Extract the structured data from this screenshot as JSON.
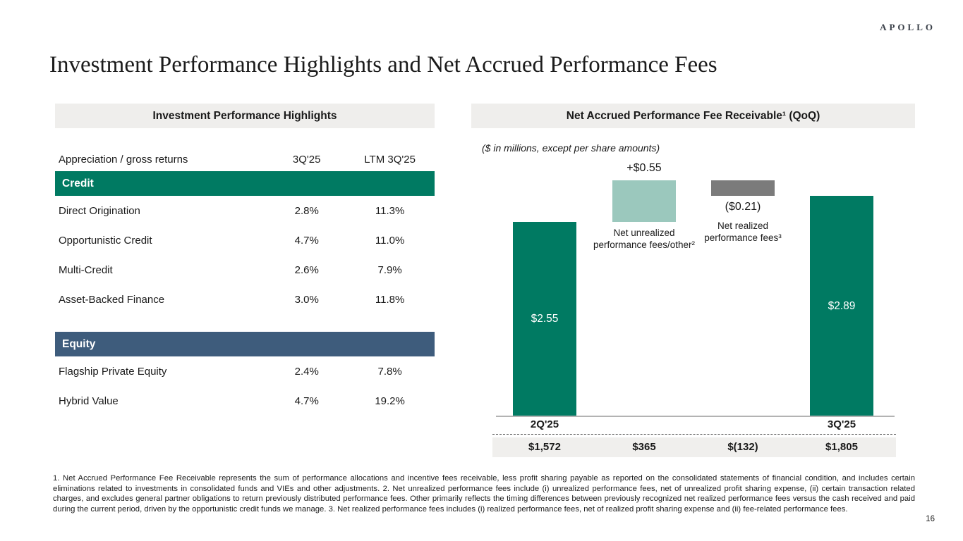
{
  "brand": {
    "logo": "APOLLO"
  },
  "page": {
    "title": "Investment Performance Highlights and Net Accrued Performance Fees",
    "page_number": "16",
    "footnotes": "1. Net Accrued Performance Fee Receivable represents the sum of performance allocations and incentive fees receivable, less profit sharing payable as reported on the consolidated statements of financial condition, and includes certain eliminations related to investments in consolidated funds and VIEs and other adjustments. 2. Net unrealized performance fees include (i) unrealized performance fees, net of unrealized profit sharing expense, (ii) certain transaction related charges, and excludes general partner obligations to return previously distributed performance fees. Other primarily reflects the timing differences between previously recognized net realized performance fees versus the cash received and paid during the current period, driven by the opportunistic credit funds we manage. 3. Net realized performance fees includes (i) realized performance fees, net of realized profit sharing expense and (ii) fee-related performance fees."
  },
  "left_panel": {
    "header": "Investment Performance Highlights",
    "columns": {
      "label": "Appreciation / gross returns",
      "col1": "3Q'25",
      "col2": "LTM 3Q'25"
    },
    "sections": [
      {
        "name": "Credit",
        "color": "#007a62",
        "rows": [
          {
            "label": "Direct Origination",
            "q": "2.8%",
            "ltm": "11.3%"
          },
          {
            "label": "Opportunistic Credit",
            "q": "4.7%",
            "ltm": "11.0%"
          },
          {
            "label": "Multi-Credit",
            "q": "2.6%",
            "ltm": "7.9%"
          },
          {
            "label": "Asset-Backed Finance",
            "q": "3.0%",
            "ltm": "11.8%"
          }
        ]
      },
      {
        "name": "Equity",
        "color": "#3e5c7c",
        "rows": [
          {
            "label": "Flagship Private Equity",
            "q": "2.4%",
            "ltm": "7.8%"
          },
          {
            "label": "Hybrid Value",
            "q": "4.7%",
            "ltm": "19.2%"
          }
        ]
      }
    ]
  },
  "right_panel": {
    "header": "Net Accrued Performance Fee Receivable¹ (QoQ)",
    "units_note": "($ in millions, except per share amounts)"
  },
  "chart_data": {
    "type": "bar",
    "subtype": "waterfall",
    "title": "Net Accrued Performance Fee Receivable (QoQ)",
    "categories": [
      "2Q'25",
      "Net unrealized performance fees/other",
      "Net realized performance fees",
      "3Q'25"
    ],
    "series": [
      {
        "name": "Per share ($)",
        "values": [
          2.55,
          0.55,
          -0.21,
          2.89
        ]
      },
      {
        "name": "Total ($ in millions)",
        "values": [
          1572,
          365,
          -132,
          1805
        ]
      }
    ],
    "bar_segments": [
      {
        "from": 0,
        "to": 2.55
      },
      {
        "from": 2.55,
        "to": 3.1
      },
      {
        "from": 2.89,
        "to": 3.1
      },
      {
        "from": 0,
        "to": 2.89
      }
    ],
    "bar_colors": [
      "#007a62",
      "#9bc8bd",
      "#7b7b7b",
      "#007a62"
    ],
    "ylim": [
      0,
      3.3
    ],
    "grid": false,
    "legend": false,
    "labels": {
      "bar0_value": "$2.55",
      "bar1_value": "+$0.55",
      "bar2_value": "($0.21)",
      "bar3_value": "$2.89",
      "bar1_caption": "Net unrealized performance fees/other²",
      "bar2_caption": "Net realized performance fees³",
      "axis0": "2Q'25",
      "axis1": "3Q'25",
      "total0": "$1,572",
      "total1": "$365",
      "total2": "$(132)",
      "total3": "$1,805"
    }
  }
}
